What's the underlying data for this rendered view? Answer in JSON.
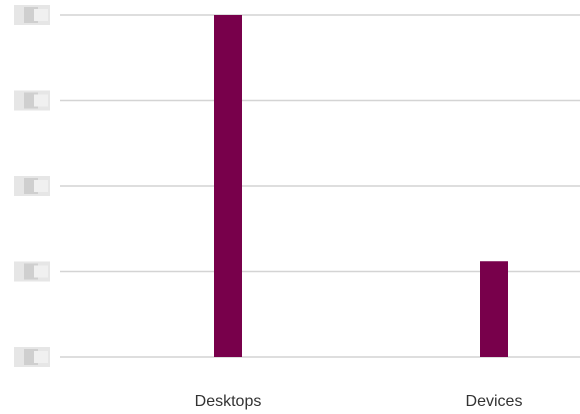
{
  "chart_data": {
    "type": "bar",
    "categories": [
      "Desktops",
      "Devices"
    ],
    "values": [
      100,
      28
    ],
    "color": "#78004b",
    "ylim": [
      0,
      100
    ],
    "yticks": [
      {
        "value": 0,
        "label": null
      },
      {
        "value": 25,
        "label": null
      },
      {
        "value": 50,
        "label": null
      },
      {
        "value": 75,
        "label": null
      },
      {
        "value": 100,
        "label": null
      }
    ],
    "grid": true
  }
}
